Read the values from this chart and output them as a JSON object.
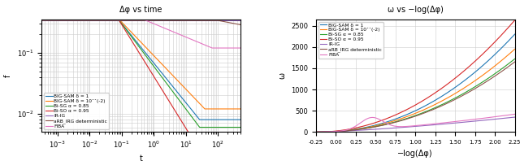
{
  "left_title": "Δφ vs time",
  "right_title": "ω vs −log(Δφ)",
  "left_xlabel": "t",
  "left_ylabel": "f",
  "right_xlabel": "−log(Δφ)",
  "right_ylabel": "ω",
  "legend_labels": [
    "BIG-SAM δ = 1",
    "BIG-SAM δ = 10ˆˆ(-2)",
    "Bi-SG α = 0.85",
    "Bi-SO α = 0.95",
    "IR-IG",
    "aRB_IRG deterministic",
    "FIBA"
  ],
  "colors": [
    "#1f77b4",
    "#ff7f0e",
    "#2ca02c",
    "#d62728",
    "#9467bd",
    "#8c564b",
    "#e377c2"
  ],
  "right_xlim": [
    -0.25,
    2.25
  ],
  "right_ylim": [
    0,
    2650
  ]
}
